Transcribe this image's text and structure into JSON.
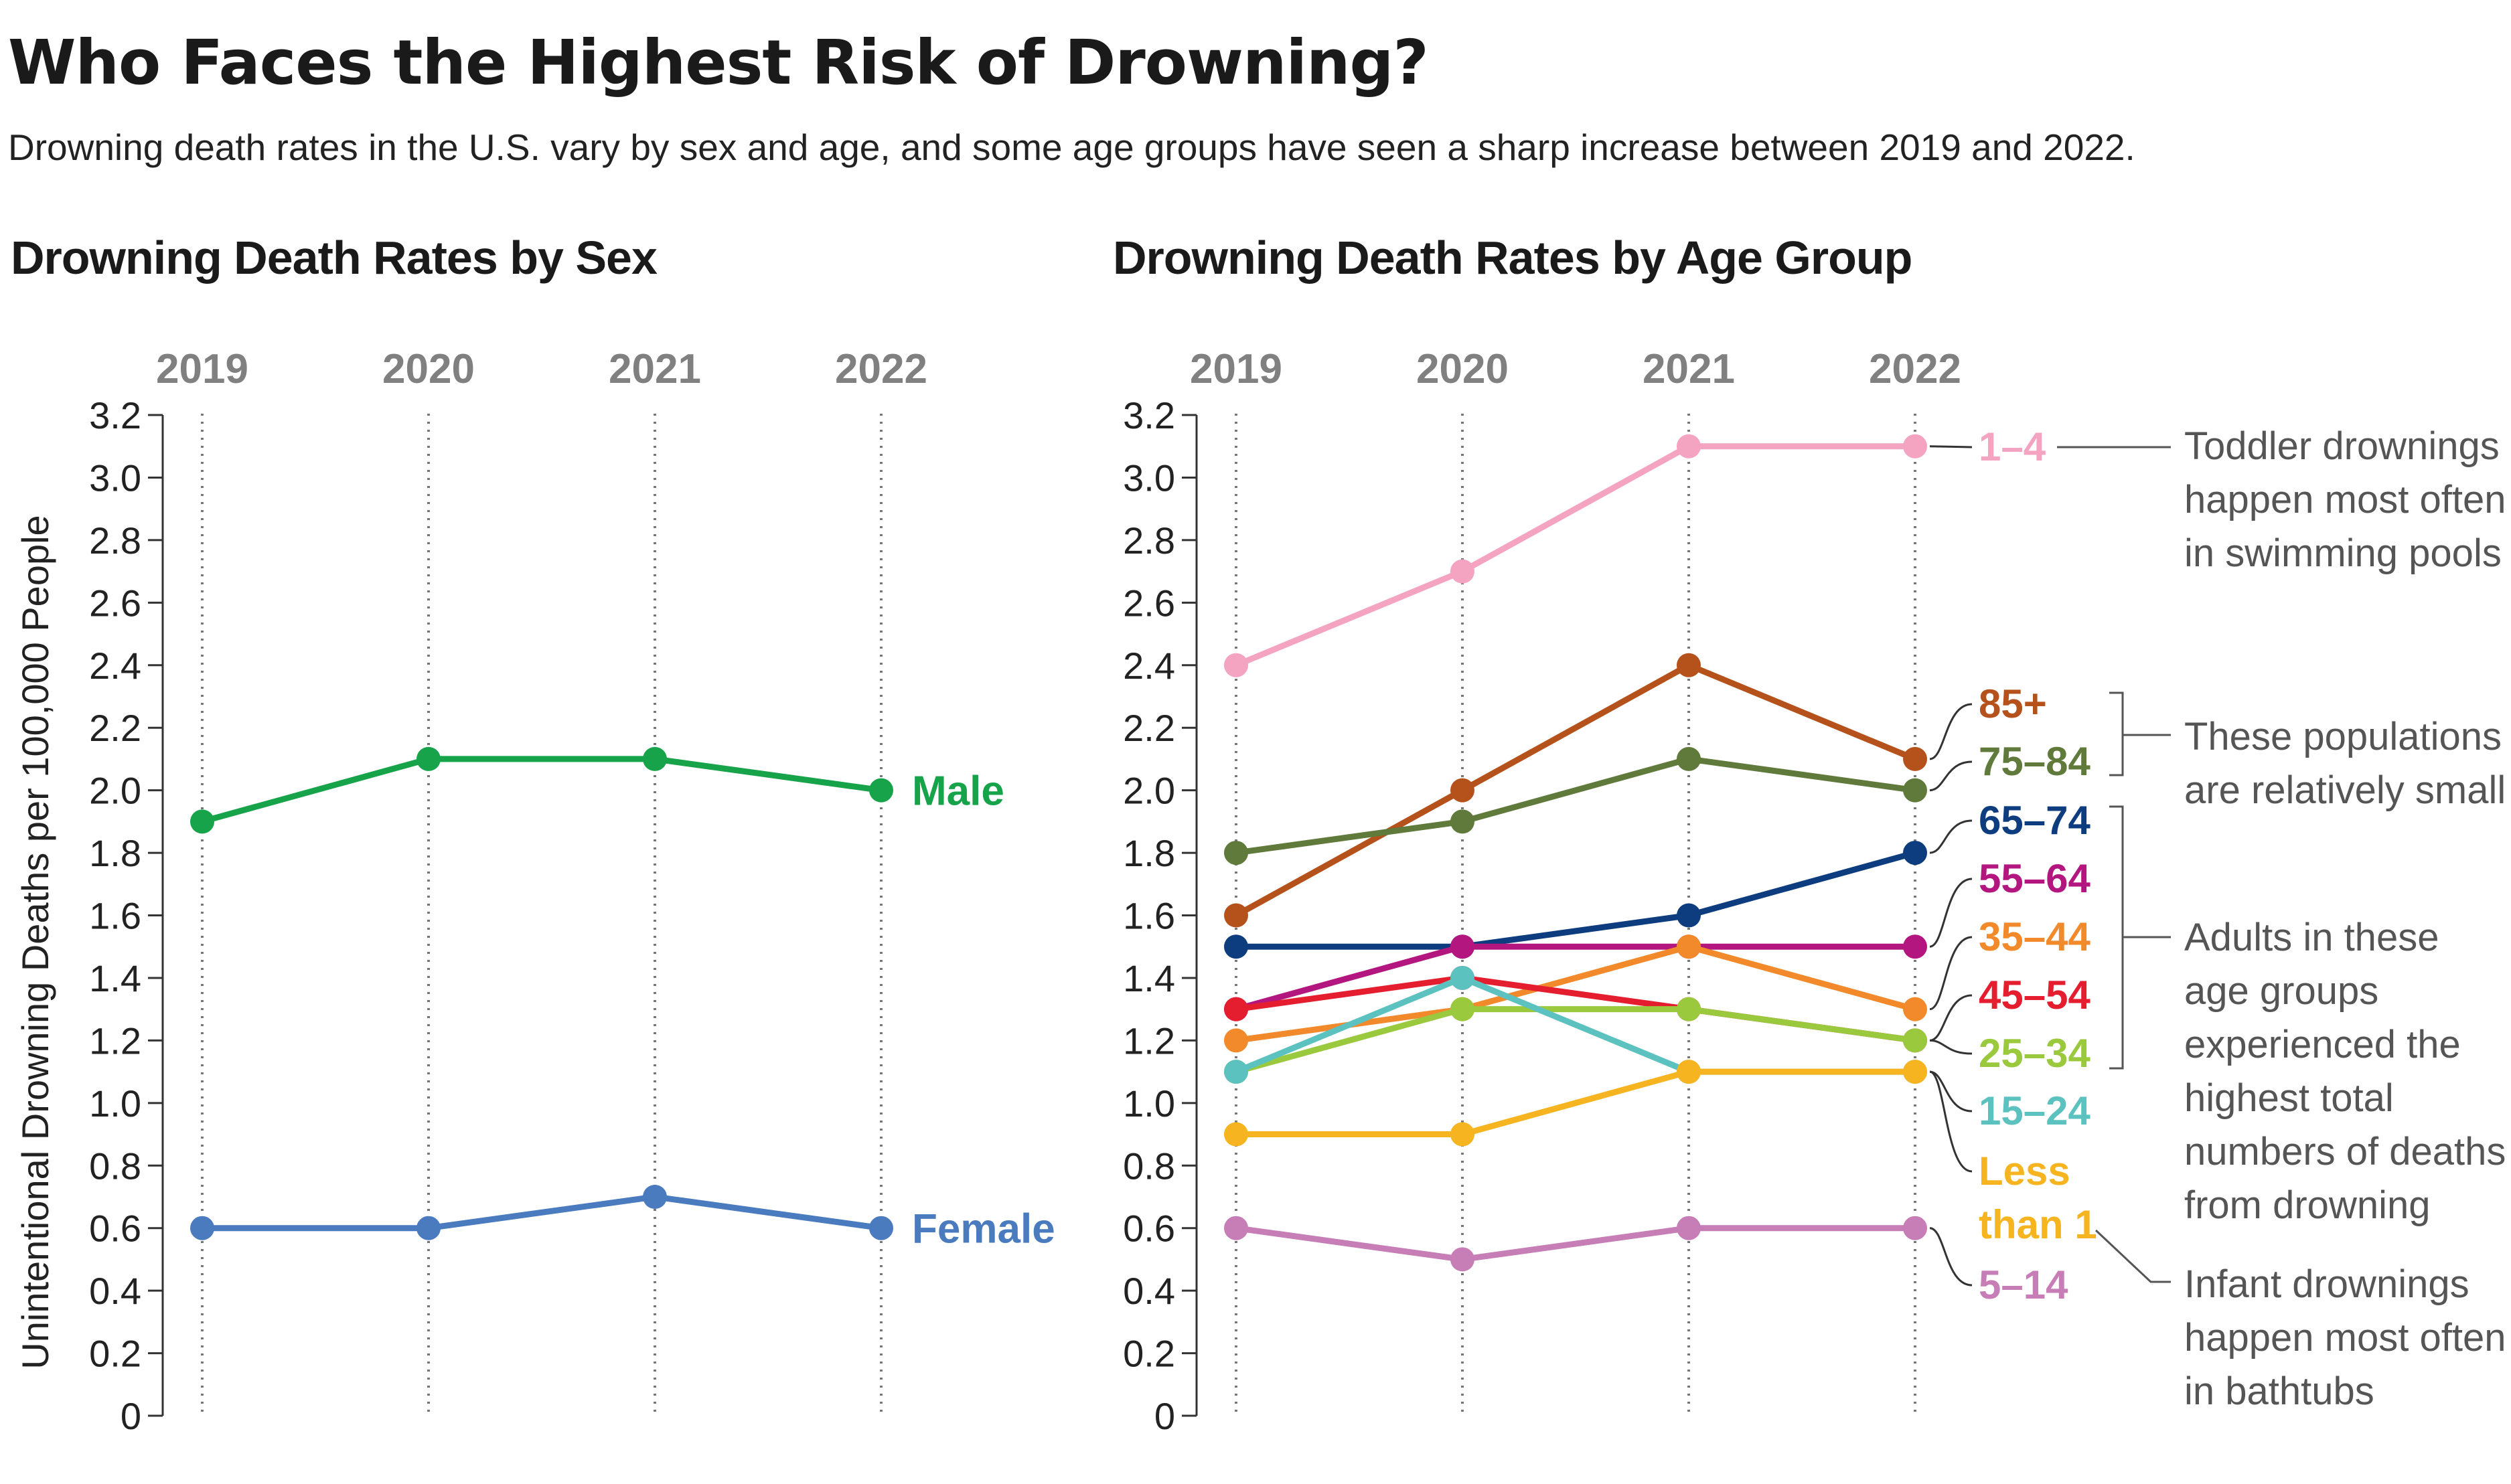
{
  "title": "Who Faces the Highest Risk of Drowning?",
  "subtitle": "Drowning death rates in the U.S. vary by sex and age, and some age groups have seen a sharp increase between 2019 and 2022.",
  "colors": {
    "male": "#16a34a",
    "female": "#4b7bbf",
    "1-4": "#f4a3c1",
    "85+": "#b5521c",
    "75-84": "#5f7a3a",
    "65-74": "#0d3d7f",
    "55-64": "#b4167f",
    "35-44": "#f28a2b",
    "45-54": "#e41e2f",
    "25-34": "#9ac93d",
    "15-24": "#5cc2bf",
    "Less than 1": "#f6b520",
    "5-14": "#c77db6",
    "annotation": "#555555",
    "axis": "#333333",
    "year_label": "#808080"
  },
  "chart_data": [
    {
      "type": "line",
      "title": "Drowning Death Rates by Sex",
      "x": [
        "2019",
        "2020",
        "2021",
        "2022"
      ],
      "ylabel": "Unintentional Drowning Deaths per 100,000 People",
      "ylim": [
        0,
        3.2
      ],
      "yticks": [
        "0",
        "0.2",
        "0.4",
        "0.6",
        "0.8",
        "1.0",
        "1.2",
        "1.4",
        "1.6",
        "1.8",
        "2.0",
        "2.2",
        "2.4",
        "2.6",
        "2.8",
        "3.0",
        "3.2"
      ],
      "grid": "vertical dotted lines at each year",
      "series": [
        {
          "name": "Male",
          "key": "male",
          "values": [
            1.9,
            2.1,
            2.1,
            2.0
          ]
        },
        {
          "name": "Female",
          "key": "female",
          "values": [
            0.6,
            0.6,
            0.7,
            0.6
          ]
        }
      ]
    },
    {
      "type": "line",
      "title": "Drowning Death Rates by Age Group",
      "x": [
        "2019",
        "2020",
        "2021",
        "2022"
      ],
      "ylim": [
        0,
        3.2
      ],
      "yticks": [
        "0",
        "0.2",
        "0.4",
        "0.6",
        "0.8",
        "1.0",
        "1.2",
        "1.4",
        "1.6",
        "1.8",
        "2.0",
        "2.2",
        "2.4",
        "2.6",
        "2.8",
        "3.0",
        "3.2"
      ],
      "grid": "vertical dotted lines at each year",
      "series": [
        {
          "name": "1–4",
          "key": "1-4",
          "values": [
            2.4,
            2.7,
            3.1,
            3.1
          ]
        },
        {
          "name": "85+",
          "key": "85+",
          "values": [
            1.6,
            2.0,
            2.4,
            2.1
          ]
        },
        {
          "name": "75–84",
          "key": "75-84",
          "values": [
            1.8,
            1.9,
            2.1,
            2.0
          ]
        },
        {
          "name": "65–74",
          "key": "65-74",
          "values": [
            1.5,
            1.5,
            1.6,
            1.8
          ]
        },
        {
          "name": "55–64",
          "key": "55-64",
          "values": [
            1.3,
            1.5,
            1.5,
            1.5
          ]
        },
        {
          "name": "35–44",
          "key": "35-44",
          "values": [
            1.2,
            1.3,
            1.5,
            1.3
          ]
        },
        {
          "name": "45–54",
          "key": "45-54",
          "values": [
            1.3,
            1.4,
            1.3,
            1.2
          ]
        },
        {
          "name": "25–34",
          "key": "25-34",
          "values": [
            1.1,
            1.3,
            1.3,
            1.2
          ]
        },
        {
          "name": "15–24",
          "key": "15-24",
          "values": [
            1.1,
            1.4,
            1.1,
            1.1
          ]
        },
        {
          "name": "Less than 1",
          "key": "Less than 1",
          "values": [
            0.9,
            0.9,
            1.1,
            1.1
          ]
        },
        {
          "name": "5–14",
          "key": "5-14",
          "values": [
            0.6,
            0.5,
            0.6,
            0.6
          ]
        }
      ],
      "annotations": [
        {
          "lines": [
            "Toddler drownings",
            "happen most often",
            "in swimming pools"
          ]
        },
        {
          "lines": [
            "These populations",
            "are relatively small"
          ]
        },
        {
          "lines": [
            "Adults in these",
            "age groups",
            "experienced the",
            "highest total",
            "numbers of deaths",
            "from drowning"
          ]
        },
        {
          "lines": [
            "Infant drownings",
            "happen most often",
            "in bathtubs"
          ]
        }
      ]
    }
  ]
}
